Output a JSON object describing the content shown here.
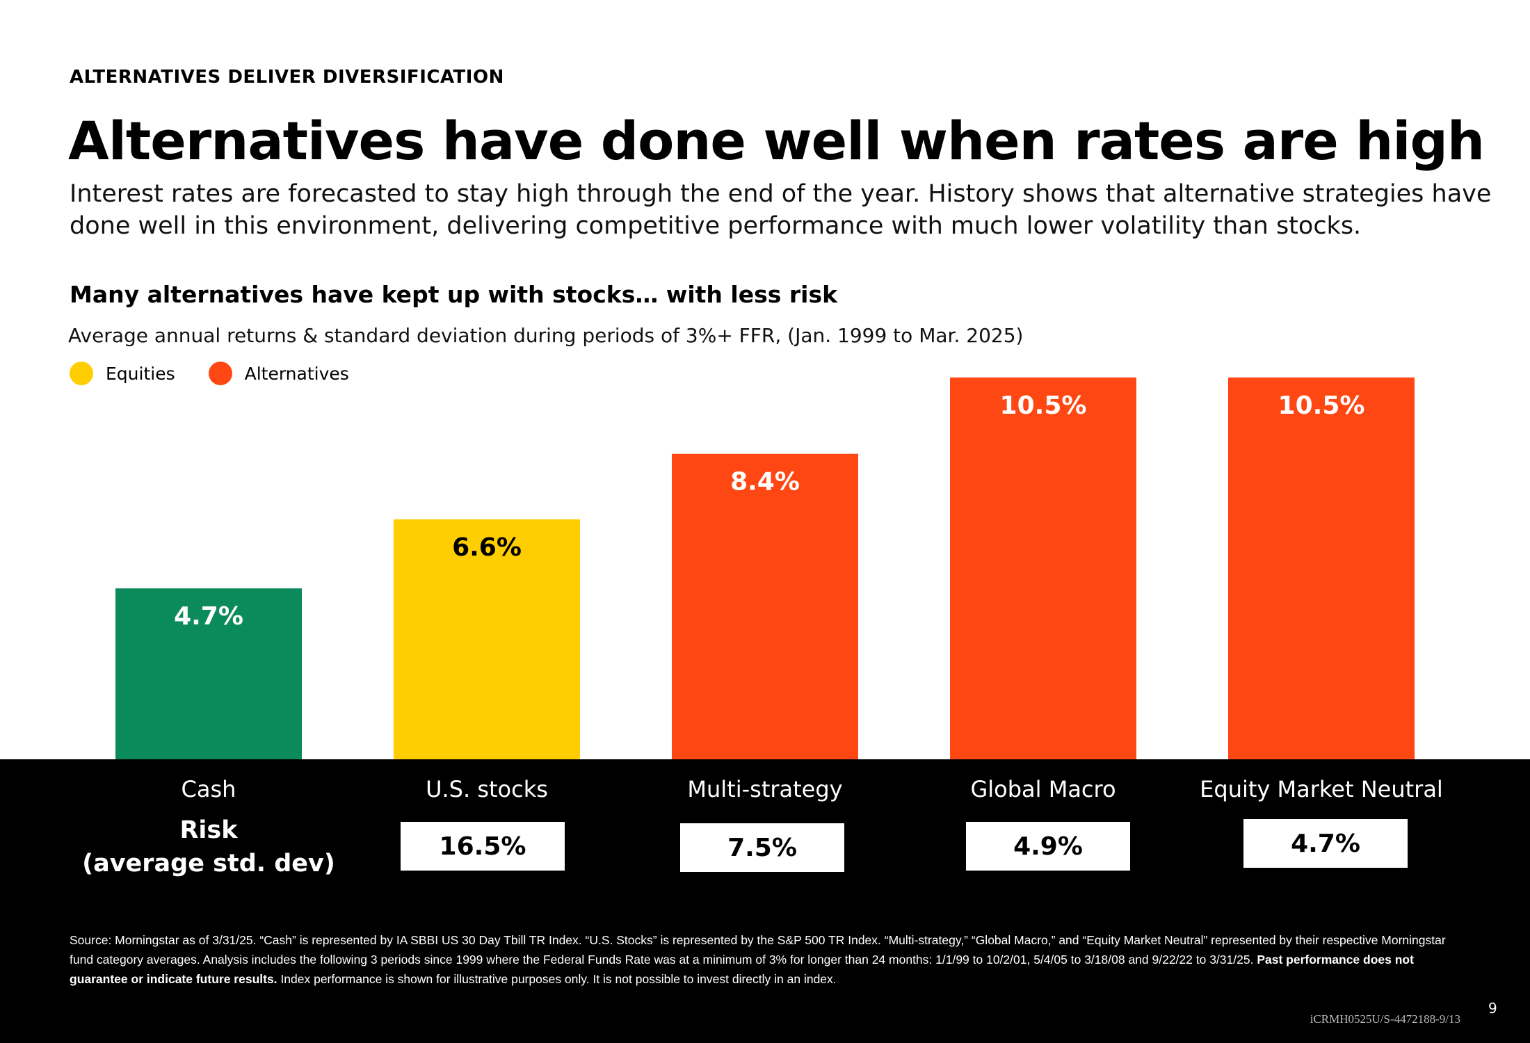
{
  "eyebrow": "ALTERNATIVES DELIVER DIVERSIFICATION",
  "headline": "Alternatives have done well when rates are high",
  "intro": "Interest rates are forecasted to stay high through the end of the year. History shows that alternative strategies have done well in this environment, delivering competitive performance with much lower volatility than stocks.",
  "subhead": "Many alternatives have kept up with stocks… with less risk",
  "colors": {
    "cash": "#0b8a5c",
    "equities": "#ffce00",
    "alternatives": "#ff4713",
    "band": "#000000"
  },
  "legend": [
    {
      "label": "Equities",
      "color": "#ffce00"
    },
    {
      "label": "Alternatives",
      "color": "#ff4713"
    }
  ],
  "chart_data": {
    "type": "bar",
    "title": "Average annual returns & standard deviation during periods of 3%+ FFR, (Jan. 1999 to Mar. 2025)",
    "categories": [
      "Cash",
      "U.S. stocks",
      "Multi-strategy",
      "Global Macro",
      "Equity Market Neutral"
    ],
    "values": [
      4.7,
      6.6,
      8.4,
      10.5,
      10.5
    ],
    "data_labels": [
      "4.7%",
      "6.6%",
      "8.4%",
      "10.5%",
      "10.5%"
    ],
    "bar_colors": [
      "#0b8a5c",
      "#ffce00",
      "#ff4713",
      "#ff4713",
      "#ff4713"
    ],
    "ylim": [
      0,
      11
    ],
    "grid": false,
    "legend_position": "top-left",
    "risk": {
      "label": "Risk\n(average std. dev)",
      "values": [
        "—",
        "16.5%",
        "7.5%",
        "4.9%",
        "4.7%"
      ]
    }
  },
  "footnote": {
    "text": "Source: Morningstar as of 3/31/25. “Cash” is represented by IA SBBI US 30 Day Tbill TR Index. “U.S. Stocks” is represented by the S&P 500 TR Index. “Multi-strategy,” “Global Macro,” and “Equity Market Neutral” represented by their respective Morningstar fund category averages. Analysis includes the following 3 periods since 1999 where the Federal Funds Rate was at a minimum of 3% for longer than 24 months: 1/1/99 to 10/2/01, 5/4/05 to 3/18/08 and 9/22/22 to 3/31/25. ",
    "bold": "Past performance does not guarantee or indicate future results.",
    "tail": " Index performance is shown for illustrative purposes only. It is not possible to invest directly in an index."
  },
  "page_number": "9",
  "doc_code": "iCRMH0525U/S-4472188-9/13"
}
